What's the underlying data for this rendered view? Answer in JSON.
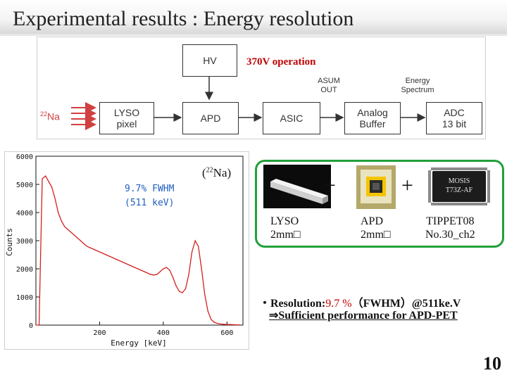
{
  "slide": {
    "title": "Experimental results : Energy resolution",
    "page_number": "10"
  },
  "diagram": {
    "operation": "370V operation",
    "source_mass": "22",
    "source_element": "Na",
    "blocks": {
      "hv": "HV",
      "lyso": "LYSO\npixel",
      "apd": "APD",
      "asic": "ASIC",
      "analog_buffer": "Analog\nBuffer",
      "adc": "ADC\n13 bit"
    },
    "labels": {
      "asum_out": "ASUM\nOUT",
      "energy_spectrum": "Energy\nSpectrum"
    }
  },
  "chart_data": {
    "type": "line",
    "title": "",
    "xlabel": "Energy [keV]",
    "ylabel": "Counts",
    "xlim": [
      0,
      650
    ],
    "ylim": [
      0,
      6000
    ],
    "xticks": [
      200,
      400,
      600
    ],
    "yticks": [
      0,
      1000,
      2000,
      3000,
      4000,
      5000,
      6000
    ],
    "annotation_line1": "9.7% FWHM",
    "annotation_line2": "(511 keV)",
    "source_mass": "22",
    "source_label": "Na",
    "series": [
      {
        "name": "22Na spectrum",
        "color": "#d42020",
        "x": [
          0,
          10,
          20,
          30,
          40,
          50,
          60,
          70,
          80,
          90,
          100,
          110,
          120,
          130,
          140,
          150,
          160,
          170,
          180,
          190,
          200,
          210,
          220,
          230,
          240,
          250,
          260,
          270,
          280,
          290,
          300,
          310,
          320,
          330,
          340,
          350,
          360,
          370,
          380,
          390,
          400,
          410,
          420,
          430,
          440,
          450,
          460,
          470,
          480,
          490,
          500,
          510,
          520,
          530,
          540,
          550,
          560,
          570,
          580,
          590,
          600,
          610,
          620,
          630,
          640
        ],
        "y": [
          0,
          0,
          5200,
          5300,
          5100,
          4900,
          4500,
          4000,
          3700,
          3500,
          3400,
          3300,
          3200,
          3100,
          3000,
          2900,
          2800,
          2750,
          2700,
          2650,
          2600,
          2550,
          2500,
          2450,
          2400,
          2350,
          2300,
          2250,
          2200,
          2150,
          2100,
          2050,
          2000,
          1950,
          1900,
          1850,
          1800,
          1780,
          1800,
          1900,
          2000,
          2050,
          1950,
          1700,
          1400,
          1200,
          1150,
          1300,
          1800,
          2600,
          3000,
          2800,
          2000,
          1100,
          500,
          200,
          100,
          60,
          40,
          30,
          20,
          20,
          15,
          10,
          10
        ]
      }
    ]
  },
  "components": {
    "lyso": "LYSO\n2mm□",
    "apd": "APD\n2mm□",
    "tippet": "TIPPET08\nNo.30_ch2",
    "plus": "+",
    "chip_marking_1": "MOSIS",
    "chip_marking_2": "T73Z-AF"
  },
  "results": {
    "bullet": "・Resolution:",
    "value": "9.7 %",
    "suffix": "（FWHM）@511ke.V",
    "conclusion": "⇒Sufficient performance for APD-PET"
  },
  "colors": {
    "accent_red": "#c00000",
    "box_green": "#22a03a",
    "spectrum_red": "#d42020",
    "annotation_blue": "#1f5fbf"
  }
}
